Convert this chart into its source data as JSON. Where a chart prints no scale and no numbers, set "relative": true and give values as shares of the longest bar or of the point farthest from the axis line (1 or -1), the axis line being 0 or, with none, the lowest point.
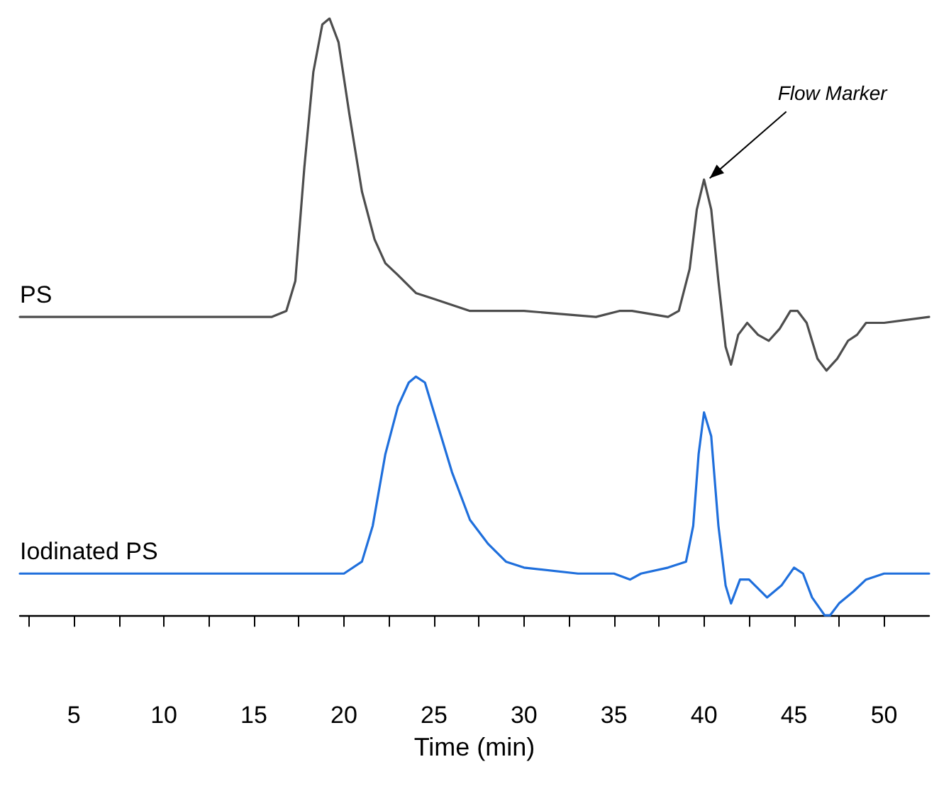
{
  "chart_data": {
    "type": "line",
    "xlabel": "Time (min)",
    "relative": true,
    "legend": false,
    "grid": false,
    "marker": "none",
    "line_style": "solid",
    "xlim": [
      2,
      52.5
    ],
    "xticks": [
      {
        "value": 2.5,
        "label": null
      },
      5,
      {
        "value": 7.5,
        "label": null
      },
      10,
      {
        "value": 12.5,
        "label": null
      },
      15,
      {
        "value": 17.5,
        "label": null
      },
      20,
      {
        "value": 22.5,
        "label": null
      },
      25,
      {
        "value": 27.5,
        "label": null
      },
      30,
      {
        "value": 32.5,
        "label": null
      },
      35,
      {
        "value": 37.5,
        "label": null
      },
      40,
      {
        "value": 42.5,
        "label": null
      },
      45,
      {
        "value": 47.5,
        "label": null
      },
      50
    ],
    "annotations": [
      {
        "text": "Flow Marker",
        "x": 40,
        "y": 0.73
      }
    ],
    "series": [
      {
        "name": "PS",
        "color": "#4d4d4d",
        "x": [
          2,
          16,
          16.8,
          17.3,
          17.8,
          18.3,
          18.8,
          19.2,
          19.7,
          20.3,
          21,
          21.7,
          22.3,
          23,
          24,
          25,
          27,
          30,
          34,
          35.3,
          36,
          38,
          38.6,
          39.2,
          39.6,
          40,
          40.4,
          40.8,
          41.2,
          41.5,
          41.9,
          42.4,
          43,
          43.6,
          44.2,
          44.8,
          45.2,
          45.7,
          46.3,
          46.8,
          47.4,
          48,
          48.5,
          49,
          50,
          52.5
        ],
        "values": [
          0.5,
          0.5,
          0.51,
          0.56,
          0.75,
          0.91,
          0.99,
          1,
          0.96,
          0.84,
          0.71,
          0.63,
          0.59,
          0.57,
          0.54,
          0.53,
          0.51,
          0.51,
          0.5,
          0.51,
          0.51,
          0.5,
          0.51,
          0.58,
          0.68,
          0.73,
          0.68,
          0.56,
          0.45,
          0.42,
          0.47,
          0.49,
          0.47,
          0.46,
          0.48,
          0.51,
          0.51,
          0.49,
          0.43,
          0.41,
          0.43,
          0.46,
          0.47,
          0.49,
          0.49,
          0.5
        ]
      },
      {
        "name": "Iodinated PS",
        "color": "#1f6fdc",
        "x": [
          2,
          20,
          21,
          21.6,
          22.3,
          23,
          23.6,
          24,
          24.5,
          25.2,
          26,
          27,
          28,
          29,
          30,
          33,
          35,
          35.9,
          36.5,
          38,
          39,
          39.4,
          39.7,
          40,
          40.4,
          40.8,
          41.2,
          41.5,
          42,
          42.5,
          43.5,
          44.3,
          45,
          45.5,
          46,
          46.7,
          47,
          47.5,
          48.3,
          49,
          50,
          52.5
        ],
        "values": [
          0.07,
          0.07,
          0.09,
          0.15,
          0.27,
          0.35,
          0.39,
          0.4,
          0.39,
          0.32,
          0.24,
          0.16,
          0.12,
          0.09,
          0.08,
          0.07,
          0.07,
          0.06,
          0.07,
          0.08,
          0.09,
          0.15,
          0.27,
          0.34,
          0.3,
          0.15,
          0.05,
          0.02,
          0.06,
          0.06,
          0.03,
          0.05,
          0.08,
          0.07,
          0.03,
          0,
          0,
          0.02,
          0.04,
          0.06,
          0.07,
          0.07
        ]
      }
    ]
  }
}
